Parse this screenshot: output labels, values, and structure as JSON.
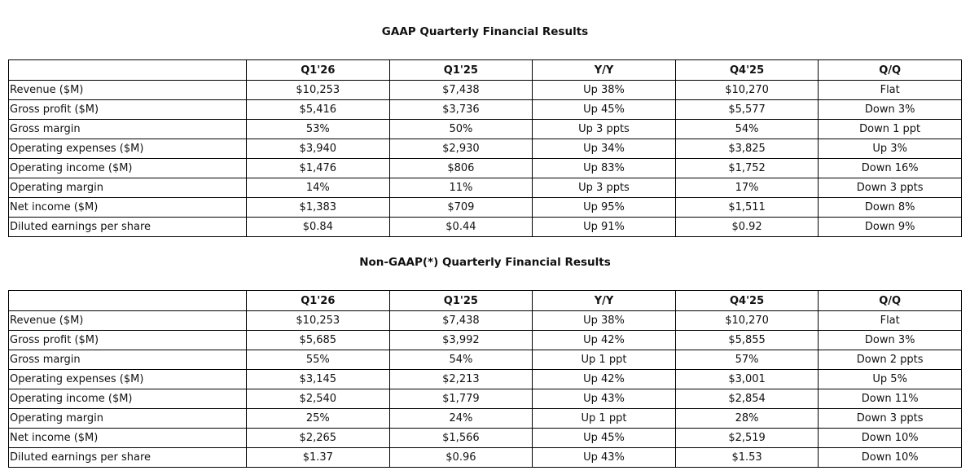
{
  "tables": [
    {
      "title": "GAAP Quarterly Financial Results",
      "header": [
        "",
        "Q1'26",
        "Q1'25",
        "Y/Y",
        "Q4'25",
        "Q/Q"
      ],
      "rows": [
        [
          "Revenue ($M)",
          "$10,253",
          "$7,438",
          "Up 38%",
          "$10,270",
          "Flat"
        ],
        [
          "Gross profit ($M)",
          "$5,416",
          "$3,736",
          "Up 45%",
          "$5,577",
          "Down 3%"
        ],
        [
          "Gross margin",
          "53%",
          "50%",
          "Up 3 ppts",
          "54%",
          "Down 1 ppt"
        ],
        [
          "Operating expenses ($M)",
          "$3,940",
          "$2,930",
          "Up 34%",
          "$3,825",
          "Up 3%"
        ],
        [
          "Operating income ($M)",
          "$1,476",
          "$806",
          "Up 83%",
          "$1,752",
          "Down 16%"
        ],
        [
          "Operating margin",
          "14%",
          "11%",
          "Up 3 ppts",
          "17%",
          "Down 3 ppts"
        ],
        [
          "Net income ($M)",
          "$1,383",
          "$709",
          "Up 95%",
          "$1,511",
          "Down 8%"
        ],
        [
          "Diluted earnings per share",
          "$0.84",
          "$0.44",
          "Up 91%",
          "$0.92",
          "Down 9%"
        ]
      ]
    },
    {
      "title": "Non-GAAP(*) Quarterly Financial Results",
      "header": [
        "",
        "Q1'26",
        "Q1'25",
        "Y/Y",
        "Q4'25",
        "Q/Q"
      ],
      "rows": [
        [
          "Revenue ($M)",
          "$10,253",
          "$7,438",
          "Up 38%",
          "$10,270",
          "Flat"
        ],
        [
          "Gross profit ($M)",
          "$5,685",
          "$3,992",
          "Up 42%",
          "$5,855",
          "Down 3%"
        ],
        [
          "Gross margin",
          "55%",
          "54%",
          "Up 1 ppt",
          "57%",
          "Down 2 ppts"
        ],
        [
          "Operating expenses ($M)",
          "$3,145",
          "$2,213",
          "Up 42%",
          "$3,001",
          "Up 5%"
        ],
        [
          "Operating income ($M)",
          "$2,540",
          "$1,779",
          "Up 43%",
          "$2,854",
          "Down 11%"
        ],
        [
          "Operating margin",
          "25%",
          "24%",
          "Up 1 ppt",
          "28%",
          "Down 3 ppts"
        ],
        [
          "Net income ($M)",
          "$2,265",
          "$1,566",
          "Up 45%",
          "$2,519",
          "Down 10%"
        ],
        [
          "Diluted earnings per share",
          "$1.37",
          "$0.96",
          "Up 43%",
          "$1.53",
          "Down 10%"
        ]
      ]
    }
  ]
}
